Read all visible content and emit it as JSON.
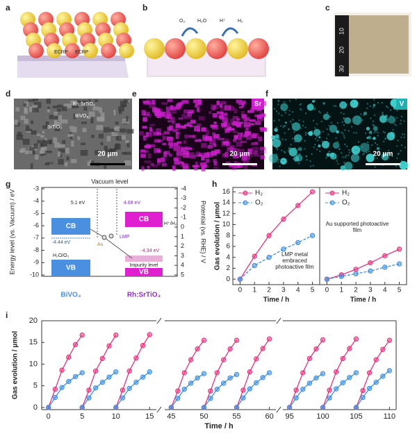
{
  "panel_labels": [
    "a",
    "b",
    "c",
    "d",
    "e",
    "f",
    "g",
    "h",
    "i"
  ],
  "panel_a": {
    "labels": [
      "ECRP",
      "ECRP"
    ]
  },
  "panel_b": {
    "labels": [
      "O₂",
      "H₂O",
      "H⁺",
      "H₂"
    ]
  },
  "panel_c": {
    "ruler_labels": [
      "10",
      "20",
      "30"
    ]
  },
  "panel_d": {
    "labels": [
      "Rh:SrTiO₃",
      "BiVO₄",
      "SrTiO₃"
    ],
    "scale_bar": "20 μm"
  },
  "panel_e": {
    "element": "Sr",
    "scale_bar": "20 μm"
  },
  "panel_f": {
    "element": "V",
    "scale_bar": "20 μm"
  },
  "panel_g": {
    "left_axis_label": "Energy level (vs. Vacuum) / eV",
    "left_ticks": [
      -3,
      -4,
      -5,
      -6,
      -7,
      -8,
      -9,
      -10
    ],
    "right_axis_label": "Potential (vs. RHE) / V",
    "right_ticks": [
      -4,
      -3,
      -2,
      -1,
      0,
      1,
      2,
      3,
      4,
      5
    ],
    "vacuum_level": "Vacuum level",
    "work_function_left": "5.1 eV",
    "work_function_right": "4.68 eV",
    "cb": "CB",
    "vb": "VB",
    "fermi_left": "-4.44 eV",
    "fermi_right": "-4.34 eV",
    "lmp": "LMP",
    "au": "Au",
    "impurity": "Impurity level",
    "material_left": "BiVO₄",
    "material_right": "Rh:SrTiO₃",
    "redox_left": "H₂O/O₂",
    "redox_right": "H⁺/H₂"
  },
  "chart_data": [
    {
      "type": "line",
      "x": [
        0,
        1,
        2,
        3,
        4,
        5
      ],
      "xlim": [
        -0.5,
        5.5
      ],
      "xticks": [
        0,
        1,
        2,
        3,
        4,
        5
      ],
      "ylim": [
        -1,
        16.8
      ],
      "yticks": [
        0,
        2,
        4,
        6,
        8,
        10,
        12,
        14,
        16
      ],
      "ylabel": "Gas evolution / μmol",
      "xlabel": "Time / h",
      "annotation": "LMP metal embraced photoactive film",
      "legend": "upper left",
      "series": [
        {
          "name": "H₂",
          "color": "#e8327e",
          "values": [
            0,
            4.2,
            8,
            11,
            13.5,
            16
          ]
        },
        {
          "name": "O₂",
          "color": "#3d8fe0",
          "values": [
            0,
            2.5,
            4,
            5.5,
            6.7,
            8
          ]
        }
      ]
    },
    {
      "type": "line",
      "x": [
        0,
        1,
        2,
        3,
        4,
        5
      ],
      "xlim": [
        -0.5,
        5.5
      ],
      "xticks": [
        0,
        1,
        2,
        3,
        4,
        5
      ],
      "ylim": [
        -1,
        16.8
      ],
      "xlabel": "Time / h",
      "annotation": "Au supported photoactive film",
      "legend": "upper left",
      "series": [
        {
          "name": "H₂",
          "color": "#e8327e",
          "values": [
            0,
            0.8,
            1.8,
            3,
            4.3,
            5.5
          ]
        },
        {
          "name": "O₂",
          "color": "#3d8fe0",
          "values": [
            0,
            0.5,
            1,
            1.5,
            2.2,
            2.8
          ]
        }
      ]
    },
    {
      "type": "cycles",
      "ylabel": "Gas evolution / μmol",
      "xlabel": "Time / h",
      "ylim": [
        -0.5,
        20
      ],
      "yticks": [
        0,
        5,
        10,
        15,
        20
      ],
      "segments": [
        {
          "xlim": [
            -1,
            16
          ],
          "xticks": [
            0,
            5,
            10,
            15
          ]
        },
        {
          "xlim": [
            44,
            61
          ],
          "xticks": [
            45,
            50,
            55,
            60
          ]
        },
        {
          "xlim": [
            94,
            111
          ],
          "xticks": [
            95,
            100,
            105,
            110
          ]
        }
      ],
      "cycles": [
        {
          "x": [
            0,
            1,
            2,
            3,
            4,
            5
          ],
          "series": [
            {
              "color": "#e8327e",
              "values": [
                0,
                4.2,
                8.6,
                11.6,
                14.5,
                16.7
              ]
            },
            {
              "color": "#3d8fe0",
              "values": [
                0,
                2.3,
                4.6,
                6,
                7.1,
                8
              ]
            }
          ]
        },
        {
          "x": [
            5,
            6,
            7,
            8,
            9,
            10
          ],
          "series": [
            {
              "color": "#e8327e",
              "values": [
                0,
                4,
                8.4,
                11.3,
                14.2,
                16.7
              ]
            },
            {
              "color": "#3d8fe0",
              "values": [
                0,
                2.2,
                4.5,
                5.8,
                7,
                8.2
              ]
            }
          ]
        },
        {
          "x": [
            10,
            11,
            12,
            13,
            14,
            15
          ],
          "series": [
            {
              "color": "#e8327e",
              "values": [
                0,
                4,
                8.4,
                11.4,
                14.3,
                16.8
              ]
            },
            {
              "color": "#3d8fe0",
              "values": [
                0,
                2.2,
                4.4,
                5.8,
                7,
                8.2
              ]
            }
          ]
        },
        {
          "x": [
            45,
            46,
            47,
            48,
            49,
            50
          ],
          "series": [
            {
              "color": "#e8327e",
              "values": [
                0,
                3.8,
                8,
                11,
                13.5,
                15.5
              ]
            },
            {
              "color": "#3d8fe0",
              "values": [
                0,
                2.1,
                4.2,
                5.6,
                6.8,
                7.8
              ]
            }
          ]
        },
        {
          "x": [
            50,
            51,
            52,
            53,
            54,
            55
          ],
          "series": [
            {
              "color": "#e8327e",
              "values": [
                0,
                3.8,
                8,
                11,
                13.5,
                15.5
              ]
            },
            {
              "color": "#3d8fe0",
              "values": [
                0,
                2.1,
                4.2,
                5.6,
                6.8,
                7.6
              ]
            }
          ]
        },
        {
          "x": [
            55,
            56,
            57,
            58,
            59,
            60
          ],
          "series": [
            {
              "color": "#e8327e",
              "values": [
                0,
                4,
                8.2,
                11.2,
                13.6,
                15.8
              ]
            },
            {
              "color": "#3d8fe0",
              "values": [
                0,
                2.2,
                4.3,
                5.7,
                6.9,
                8
              ]
            }
          ]
        },
        {
          "x": [
            95,
            96,
            97,
            98,
            99,
            100
          ],
          "series": [
            {
              "color": "#e8327e",
              "values": [
                0,
                4,
                8,
                11.3,
                13.5,
                15.6
              ]
            },
            {
              "color": "#3d8fe0",
              "values": [
                0,
                2.2,
                4.2,
                5.6,
                6.8,
                7.8
              ]
            }
          ]
        },
        {
          "x": [
            100,
            101,
            102,
            103,
            104,
            105
          ],
          "series": [
            {
              "color": "#e8327e",
              "values": [
                0,
                4,
                8.2,
                11.3,
                13.6,
                15.8
              ]
            },
            {
              "color": "#3d8fe0",
              "values": [
                0,
                2.2,
                4.3,
                5.7,
                6.9,
                8
              ]
            }
          ]
        },
        {
          "x": [
            105,
            106,
            107,
            108,
            109,
            110
          ],
          "series": [
            {
              "color": "#e8327e",
              "values": [
                0,
                3.9,
                8,
                11,
                13.4,
                15.5
              ]
            },
            {
              "color": "#3d8fe0",
              "values": [
                0,
                2.3,
                4.4,
                5.8,
                7.2,
                8.5
              ]
            }
          ]
        }
      ]
    }
  ]
}
